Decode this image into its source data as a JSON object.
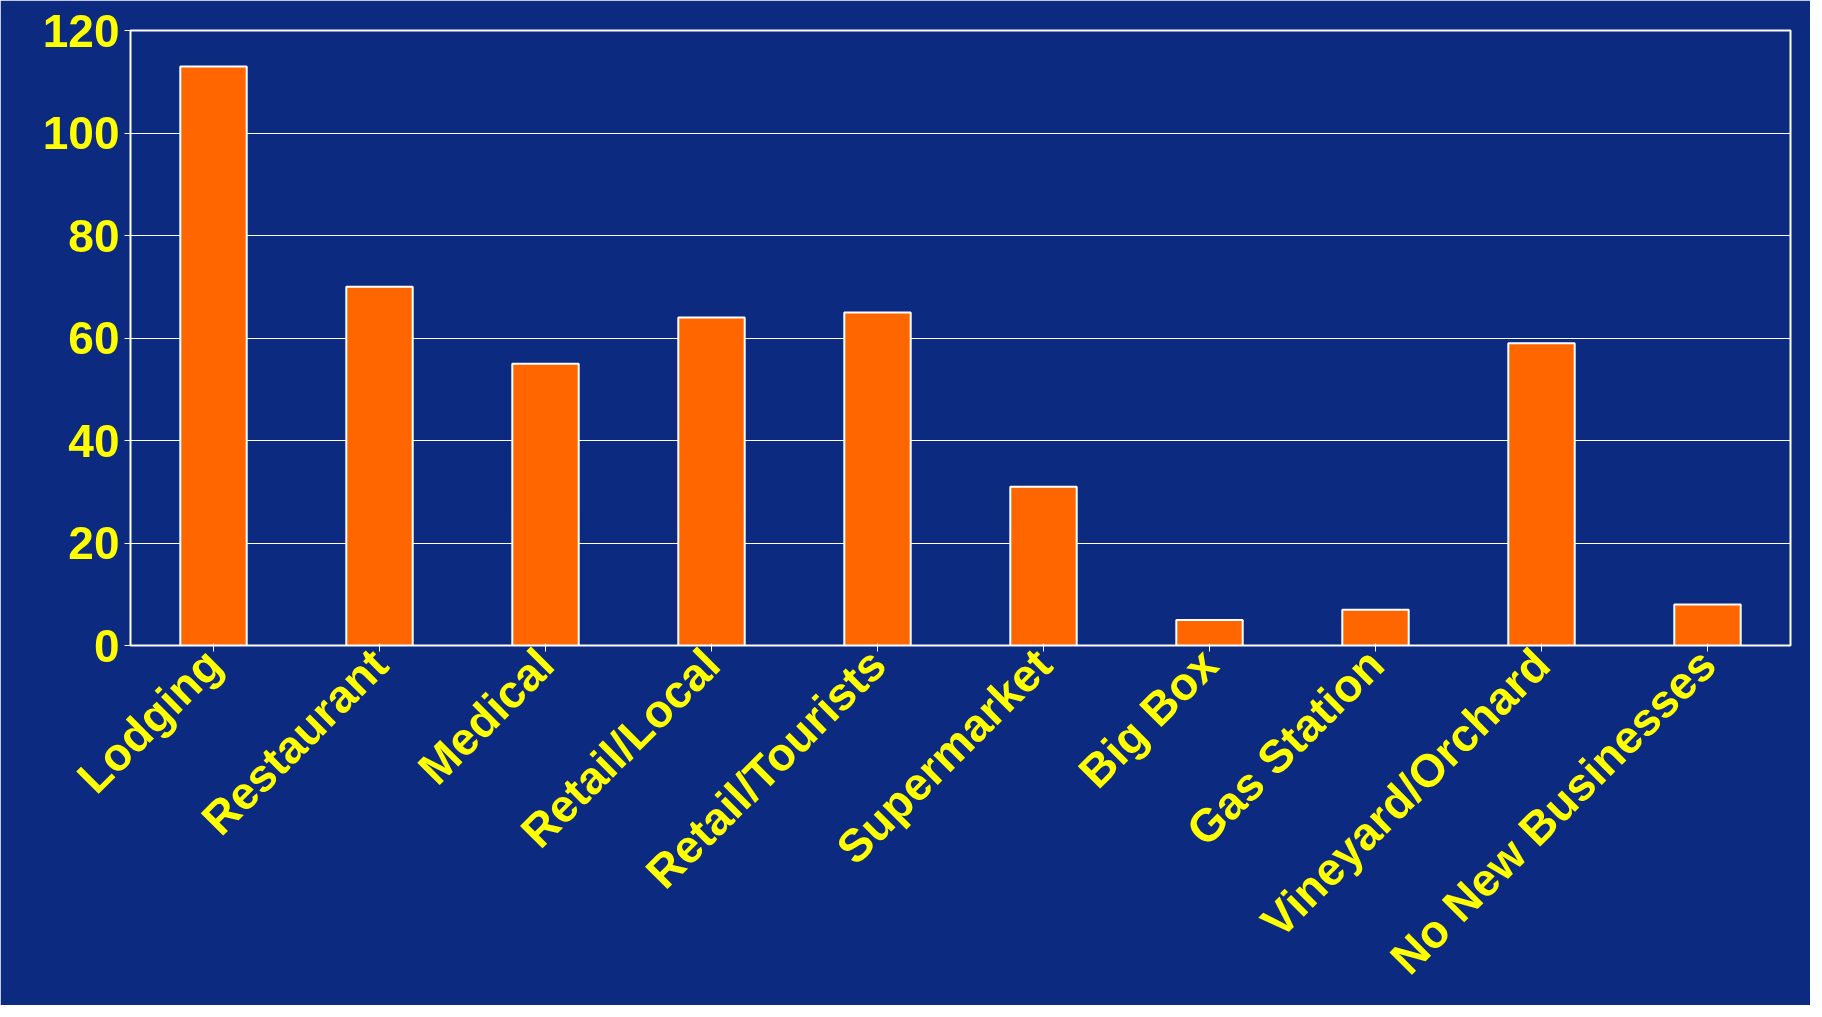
{
  "chart_data": {
    "type": "bar",
    "categories": [
      "Lodging",
      "Restaurant",
      "Medical",
      "Retail/Local",
      "Retail/Tourists",
      "Supermarket",
      "Big Box",
      "Gas Station",
      "Vineyard/Orchard",
      "No New Businesses"
    ],
    "values": [
      113,
      70,
      55,
      64,
      65,
      31,
      5,
      7,
      59,
      8
    ],
    "color": "#ff6600",
    "ylim": [
      0,
      120
    ],
    "yticks": [
      0,
      20,
      40,
      60,
      80,
      100,
      120
    ],
    "grid": "y"
  }
}
